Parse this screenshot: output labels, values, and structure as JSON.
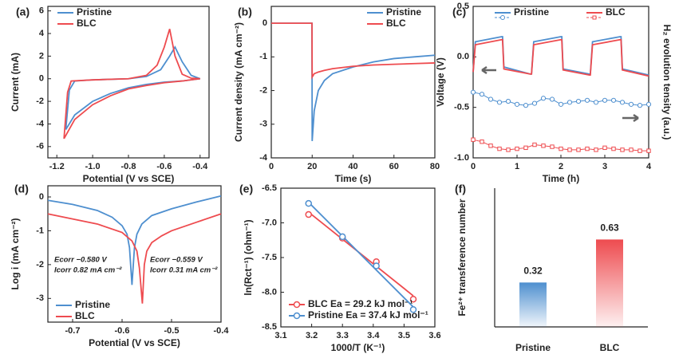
{
  "chart_data": [
    {
      "type": "line",
      "label": "(a)",
      "xlabel": "Potential (V vs SCE)",
      "ylabel": "Current (mA)",
      "xlim": [
        -1.25,
        -0.35
      ],
      "xticks": [
        -1.2,
        {
          "value": -1,
          "label": "-1.0"
        },
        -0.8,
        -0.6,
        -0.4
      ],
      "ylim": [
        -7,
        6.4
      ],
      "yticks": [
        -6,
        -4,
        -2,
        0,
        2,
        4,
        6
      ],
      "series": [
        {
          "name": "Pristine",
          "color": "#4e8fcf",
          "x": [
            -1.15,
            -1.13,
            -1.1,
            -1.0,
            -0.8,
            -0.7,
            -0.62,
            -0.57,
            -0.54,
            -0.5,
            -0.45,
            -0.4,
            -0.45,
            -0.5,
            -0.6,
            -0.7,
            -0.8,
            -0.9,
            -1.0,
            -1.1,
            -1.15
          ],
          "values": [
            -4.5,
            -1,
            -0.2,
            -0.1,
            0,
            0.2,
            0.8,
            2,
            2.8,
            1.5,
            0.3,
            0,
            -0.1,
            -0.2,
            -0.3,
            -0.5,
            -0.8,
            -1.3,
            -2,
            -3.2,
            -4.5
          ]
        },
        {
          "name": "BLC",
          "color": "#ee4b4f",
          "x": [
            -1.16,
            -1.14,
            -1.12,
            -1.0,
            -0.8,
            -0.7,
            -0.64,
            -0.6,
            -0.57,
            -0.54,
            -0.5,
            -0.45,
            -0.4,
            -0.45,
            -0.5,
            -0.6,
            -0.7,
            -0.8,
            -0.9,
            -1.0,
            -1.1,
            -1.16
          ],
          "values": [
            -5.3,
            -1.2,
            -0.2,
            -0.1,
            0,
            0.3,
            1.2,
            2.8,
            4.4,
            2.0,
            0.4,
            0.05,
            0,
            -0.1,
            -0.2,
            -0.35,
            -0.6,
            -0.9,
            -1.5,
            -2.3,
            -3.6,
            -5.3
          ]
        }
      ]
    },
    {
      "type": "line",
      "label": "(b)",
      "xlabel": "Time (s)",
      "ylabel": "Current density (mA cm⁻²)",
      "xlim": [
        0,
        80
      ],
      "xticks": [
        0,
        20,
        40,
        60,
        80
      ],
      "ylim": [
        -4,
        0.5
      ],
      "yticks": [
        -4,
        -3,
        -2,
        -1,
        0
      ],
      "x": [
        0,
        19.9,
        20,
        21,
        23,
        26,
        30,
        40,
        50,
        60,
        70,
        80
      ],
      "series": [
        {
          "name": "Pristine",
          "color": "#4e8fcf",
          "values": [
            0,
            0,
            -3.5,
            -2.6,
            -2.0,
            -1.7,
            -1.5,
            -1.3,
            -1.15,
            -1.05,
            -1.0,
            -0.95
          ]
        },
        {
          "name": "BLC",
          "color": "#ee4b4f",
          "values": [
            0,
            0,
            -1.6,
            -1.5,
            -1.45,
            -1.4,
            -1.35,
            -1.28,
            -1.24,
            -1.22,
            -1.2,
            -1.18
          ]
        }
      ]
    },
    {
      "type": "line",
      "label": "(c)",
      "xlabel": "Time (h)",
      "ylabel": "Voltage (V)",
      "y2label": "H₂ evolution tensity (a.u.)",
      "xlim": [
        0,
        4
      ],
      "xticks": [
        0,
        1,
        2,
        3,
        4
      ],
      "ylim": [
        -1,
        0.5
      ],
      "yticks": [
        {
          "value": -1,
          "label": "-1.0"
        },
        -0.5,
        {
          "value": 0,
          "label": "0.0"
        },
        0.5
      ],
      "y2lim": [
        -1,
        0.5
      ],
      "x": [
        0,
        0.05,
        0.65,
        0.67,
        0.7,
        1.3,
        1.33,
        1.38,
        2.0,
        2.02,
        2.05,
        2.65,
        2.67,
        2.72,
        3.35,
        3.37,
        3.4,
        4.0
      ],
      "h2_x": [
        0,
        0.2,
        0.4,
        0.6,
        0.8,
        1.0,
        1.2,
        1.4,
        1.6,
        1.8,
        2.0,
        2.2,
        2.4,
        2.6,
        2.8,
        3.0,
        3.2,
        3.4,
        3.6,
        3.8,
        4.0
      ],
      "series": [
        {
          "name": "Pristine",
          "color": "#4e8fcf",
          "values": [
            -0.15,
            0.15,
            0.2,
            0.2,
            -0.1,
            -0.17,
            -0.17,
            0.15,
            0.2,
            0.2,
            -0.12,
            -0.17,
            -0.17,
            0.15,
            0.2,
            0.2,
            -0.12,
            -0.18
          ],
          "h2_values": [
            -0.35,
            -0.37,
            -0.42,
            -0.45,
            -0.44,
            -0.47,
            -0.48,
            -0.46,
            -0.41,
            -0.42,
            -0.47,
            -0.45,
            -0.44,
            -0.43,
            -0.45,
            -0.43,
            -0.43,
            -0.45,
            -0.47,
            -0.48,
            -0.47
          ]
        },
        {
          "name": "BLC",
          "color": "#ee4b4f",
          "values": [
            -0.15,
            0.12,
            0.17,
            0.17,
            -0.12,
            -0.17,
            -0.17,
            0.12,
            0.17,
            0.17,
            -0.13,
            -0.18,
            -0.18,
            0.12,
            0.17,
            0.17,
            -0.13,
            -0.19
          ],
          "h2_values": [
            -0.82,
            -0.84,
            -0.88,
            -0.91,
            -0.92,
            -0.91,
            -0.9,
            -0.87,
            -0.88,
            -0.89,
            -0.91,
            -0.92,
            -0.92,
            -0.91,
            -0.92,
            -0.9,
            -0.91,
            -0.92,
            -0.92,
            -0.93,
            -0.93
          ]
        }
      ]
    },
    {
      "type": "line",
      "label": "(d)",
      "xlabel": "Potential (V vs SCE)",
      "ylabel": "Log i (mA cm⁻²)",
      "xlim": [
        -0.75,
        -0.4
      ],
      "xticks": [
        -0.7,
        -0.6,
        -0.5,
        -0.4
      ],
      "ylim": [
        -3.7,
        0.33
      ],
      "yticks": [
        -3,
        -2,
        -1,
        0
      ],
      "annotations": [
        {
          "text": "Ecorr −0.580 V",
          "color": "#4e8fcf"
        },
        {
          "text": "Icorr 0.82 mA cm⁻²",
          "color": "#4e8fcf"
        },
        {
          "text": "Ecorr −0.559 V",
          "color": "#ee4b4f"
        },
        {
          "text": "Icorr 0.31 mA cm⁻²",
          "color": "#ee4b4f"
        }
      ],
      "series": [
        {
          "name": "Pristine",
          "color": "#4e8fcf",
          "x": [
            -0.75,
            -0.7,
            -0.65,
            -0.62,
            -0.6,
            -0.59,
            -0.585,
            -0.58,
            -0.575,
            -0.57,
            -0.56,
            -0.54,
            -0.5,
            -0.45,
            -0.4
          ],
          "values": [
            -0.1,
            -0.22,
            -0.4,
            -0.6,
            -0.85,
            -1.1,
            -1.5,
            -2.6,
            -1.5,
            -1.1,
            -0.8,
            -0.55,
            -0.35,
            -0.15,
            0.03
          ]
        },
        {
          "name": "BLC",
          "color": "#ee4b4f",
          "x": [
            -0.75,
            -0.7,
            -0.65,
            -0.6,
            -0.58,
            -0.57,
            -0.565,
            -0.559,
            -0.555,
            -0.55,
            -0.54,
            -0.52,
            -0.5,
            -0.45,
            -0.4
          ],
          "values": [
            -0.5,
            -0.65,
            -0.8,
            -1.05,
            -1.3,
            -1.6,
            -2.1,
            -3.15,
            -2.0,
            -1.6,
            -1.35,
            -1.15,
            -1.0,
            -0.75,
            -0.5
          ]
        }
      ]
    },
    {
      "type": "scatter",
      "label": "(e)",
      "xlabel": "1000/T (K⁻¹)",
      "ylabel": "ln(Rct⁻¹) (ohm⁻¹)",
      "fit": true,
      "xlim": [
        3.1,
        3.6
      ],
      "xticks": [
        3.1,
        3.2,
        3.3,
        3.4,
        3.5,
        3.6
      ],
      "ylim": [
        -8.5,
        -6.5
      ],
      "yticks": [
        -8.5,
        {
          "value": -8,
          "label": "-8.0"
        },
        -7.5,
        {
          "value": -7,
          "label": "-7.0"
        },
        -6.5
      ],
      "series": [
        {
          "name": "BLC Ea = 29.2 kJ mol⁻¹",
          "color": "#ee4b4f",
          "x": [
            3.19,
            3.3,
            3.41,
            3.53
          ],
          "values": [
            -6.88,
            -7.22,
            -7.56,
            -8.1
          ]
        },
        {
          "name": "Pristine Ea = 37.4 kJ mol⁻¹",
          "color": "#4e8fcf",
          "x": [
            3.19,
            3.3,
            3.41,
            3.53
          ],
          "values": [
            -6.72,
            -7.2,
            -7.62,
            -8.25
          ]
        }
      ]
    },
    {
      "type": "bar",
      "label": "(f)",
      "ylabel": "Fe²⁺ transference number",
      "categories": [
        "Pristine",
        "BLC"
      ],
      "values": [
        0.32,
        0.63
      ],
      "colors": [
        "#4e8fcf",
        "#ee4b4f"
      ],
      "ylim": [
        0,
        1.0
      ]
    }
  ]
}
